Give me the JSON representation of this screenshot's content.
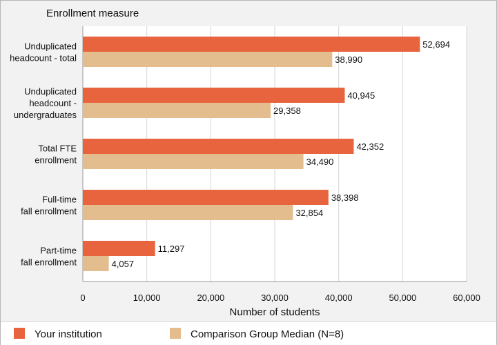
{
  "chart_data": {
    "type": "bar",
    "orientation": "horizontal",
    "category_axis_title": "Enrollment measure",
    "xlabel": "Number of students",
    "xlim": [
      0,
      60000
    ],
    "xticks": [
      0,
      10000,
      20000,
      30000,
      40000,
      50000,
      60000
    ],
    "xtick_labels": [
      "0",
      "10,000",
      "20,000",
      "30,000",
      "40,000",
      "50,000",
      "60,000"
    ],
    "grid": true,
    "legend_position": "bottom",
    "categories": [
      [
        "Unduplicated",
        "headcount - total"
      ],
      [
        "Unduplicated",
        "headcount -",
        "undergraduates"
      ],
      [
        "Total FTE",
        "enrollment"
      ],
      [
        "Full-time",
        "fall enrollment"
      ],
      [
        "Part-time",
        "fall enrollment"
      ]
    ],
    "series": [
      {
        "name": "Your institution",
        "color": "#e8643f",
        "values": [
          52694,
          40945,
          42352,
          38398,
          11297
        ],
        "labels": [
          "52,694",
          "40,945",
          "42,352",
          "38,398",
          "11,297"
        ]
      },
      {
        "name": "Comparison Group Median (N=8)",
        "color": "#e4bd8e",
        "values": [
          38990,
          29358,
          34490,
          32854,
          4057
        ],
        "labels": [
          "38,990",
          "29,358",
          "34,490",
          "32,854",
          "4,057"
        ]
      }
    ]
  }
}
